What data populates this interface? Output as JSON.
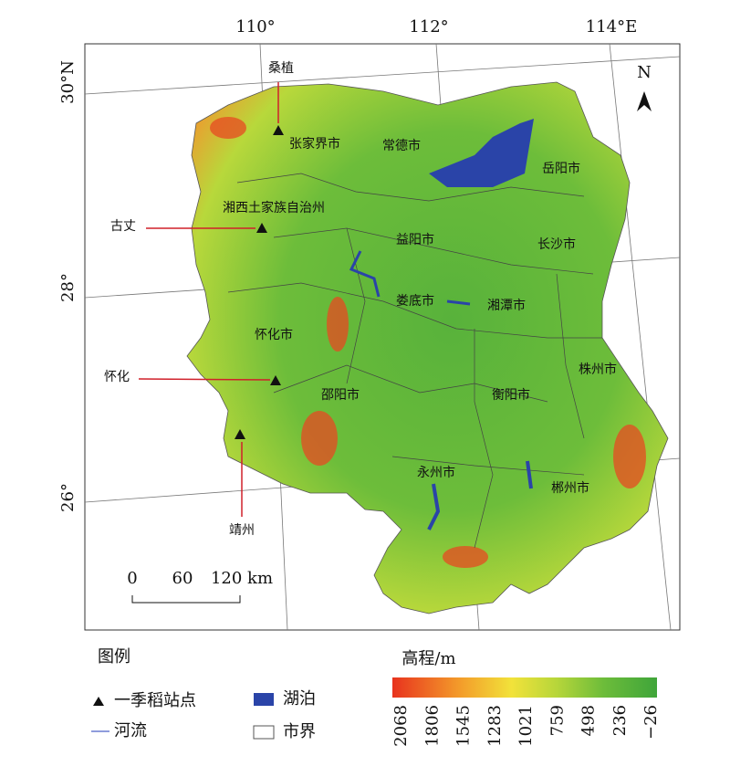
{
  "graticule": {
    "longitudes": [
      "110°",
      "112°",
      "114°E"
    ],
    "latitudes": [
      "30°N",
      "28°",
      "26°"
    ]
  },
  "north": "N",
  "cities": [
    "张家界市",
    "常德市",
    "岳阳市",
    "湘西土家族自治州",
    "益阳市",
    "长沙市",
    "娄底市",
    "湘潭市",
    "怀化市",
    "株州市",
    "邵阳市",
    "衡阳市",
    "永州市",
    "郴州市"
  ],
  "stations": [
    "桑植",
    "古丈",
    "怀化",
    "靖州"
  ],
  "scale_bar": [
    "0",
    "60",
    "120 km"
  ],
  "legend": {
    "title": "图例",
    "items": [
      "一季稻站点",
      "河流",
      "湖泊",
      "市界"
    ]
  },
  "elevation": {
    "title": "高程/m",
    "labels": [
      "2068",
      "1806",
      "1545",
      "1283",
      "1021",
      "759",
      "498",
      "236",
      "−26"
    ]
  }
}
